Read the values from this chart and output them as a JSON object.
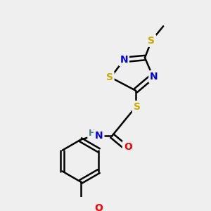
{
  "bg_color": "#efefef",
  "atom_colors": {
    "S": "#ccaa00",
    "N": "#0000ee",
    "O": "#ff0000",
    "C": "#000000",
    "H": "#408080"
  },
  "bond_color": "#000000",
  "bond_lw": 1.8
}
